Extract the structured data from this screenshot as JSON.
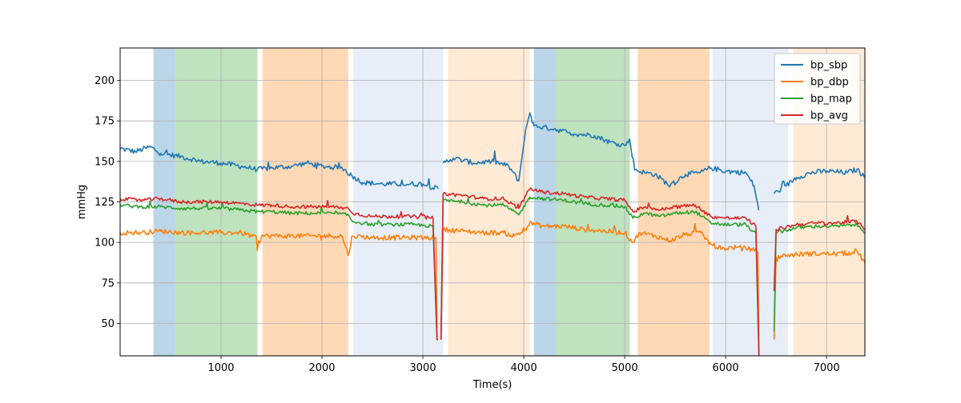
{
  "chart_data": {
    "type": "line",
    "title": "",
    "xlabel": "Time(s)",
    "ylabel": "mmHg",
    "xlim": [
      0,
      7380
    ],
    "ylim": [
      30,
      220
    ],
    "xticks": [
      1000,
      2000,
      3000,
      4000,
      5000,
      6000,
      7000
    ],
    "yticks": [
      50,
      75,
      100,
      125,
      150,
      175,
      200
    ],
    "grid": true,
    "legend_position": "top-right",
    "series": [
      {
        "name": "bp_sbp",
        "color": "#1f77b4",
        "key": "sbp"
      },
      {
        "name": "bp_dbp",
        "color": "#ff7f0e",
        "key": "dbp"
      },
      {
        "name": "bp_map",
        "color": "#2ca02c",
        "key": "map"
      },
      {
        "name": "bp_avg",
        "color": "#d62728",
        "key": "avg"
      }
    ],
    "shaded_regions": [
      {
        "x0": 330,
        "x1": 545,
        "color": "#1f77b4",
        "opacity": 0.3
      },
      {
        "x0": 545,
        "x1": 1360,
        "color": "#2ca02c",
        "opacity": 0.3
      },
      {
        "x0": 1410,
        "x1": 2260,
        "color": "#ff7f0e",
        "opacity": 0.3
      },
      {
        "x0": 2310,
        "x1": 3200,
        "color": "#aec7e8",
        "opacity": 0.3
      },
      {
        "x0": 3250,
        "x1": 4060,
        "color": "#ffbb78",
        "opacity": 0.3
      },
      {
        "x0": 4100,
        "x1": 4320,
        "color": "#1f77b4",
        "opacity": 0.3
      },
      {
        "x0": 4320,
        "x1": 5050,
        "color": "#2ca02c",
        "opacity": 0.3
      },
      {
        "x0": 5130,
        "x1": 5840,
        "color": "#ff7f0e",
        "opacity": 0.3
      },
      {
        "x0": 5870,
        "x1": 6620,
        "color": "#aec7e8",
        "opacity": 0.3
      },
      {
        "x0": 6670,
        "x1": 7380,
        "color": "#ffbb78",
        "opacity": 0.3
      }
    ],
    "keypoints": {
      "sbp": [
        [
          0,
          158
        ],
        [
          150,
          156
        ],
        [
          300,
          159
        ],
        [
          400,
          155
        ],
        [
          600,
          153
        ],
        [
          800,
          150
        ],
        [
          1000,
          149
        ],
        [
          1200,
          147
        ],
        [
          1360,
          145
        ],
        [
          1500,
          146
        ],
        [
          1700,
          147
        ],
        [
          1850,
          149
        ],
        [
          2000,
          147
        ],
        [
          2200,
          146
        ],
        [
          2300,
          141
        ],
        [
          2400,
          137
        ],
        [
          2600,
          136
        ],
        [
          2800,
          136
        ],
        [
          3000,
          136
        ],
        [
          3150,
          133
        ],
        [
          3180,
          null
        ],
        [
          3200,
          149
        ],
        [
          3300,
          152
        ],
        [
          3500,
          149
        ],
        [
          3700,
          150
        ],
        [
          3850,
          147
        ],
        [
          3950,
          138
        ],
        [
          4020,
          170
        ],
        [
          4060,
          180
        ],
        [
          4100,
          172
        ],
        [
          4300,
          170
        ],
        [
          4500,
          167
        ],
        [
          4700,
          166
        ],
        [
          4850,
          162
        ],
        [
          5000,
          160
        ],
        [
          5050,
          163
        ],
        [
          5100,
          145
        ],
        [
          5200,
          143
        ],
        [
          5300,
          142
        ],
        [
          5450,
          135
        ],
        [
          5600,
          142
        ],
        [
          5750,
          143
        ],
        [
          5850,
          146
        ],
        [
          6000,
          144
        ],
        [
          6200,
          143
        ],
        [
          6280,
          135
        ],
        [
          6330,
          120
        ],
        [
          6340,
          null
        ],
        [
          6480,
          130
        ],
        [
          6600,
          135
        ],
        [
          6700,
          140
        ],
        [
          6850,
          143
        ],
        [
          7000,
          144
        ],
        [
          7200,
          143
        ],
        [
          7300,
          145
        ],
        [
          7380,
          140
        ]
      ],
      "dbp": [
        [
          0,
          106
        ],
        [
          200,
          106
        ],
        [
          400,
          107
        ],
        [
          600,
          106
        ],
        [
          800,
          106
        ],
        [
          1000,
          106
        ],
        [
          1200,
          106
        ],
        [
          1350,
          103
        ],
        [
          1360,
          95
        ],
        [
          1400,
          104
        ],
        [
          1600,
          104
        ],
        [
          1800,
          104
        ],
        [
          2000,
          104
        ],
        [
          2200,
          104
        ],
        [
          2260,
          92
        ],
        [
          2300,
          104
        ],
        [
          2500,
          103
        ],
        [
          2700,
          103
        ],
        [
          2900,
          103
        ],
        [
          3050,
          103
        ],
        [
          3130,
          103
        ],
        [
          3140,
          40
        ],
        [
          3150,
          40
        ],
        [
          3160,
          null
        ],
        [
          3180,
          40
        ],
        [
          3200,
          108
        ],
        [
          3400,
          107
        ],
        [
          3600,
          106
        ],
        [
          3800,
          106
        ],
        [
          3900,
          104
        ],
        [
          4000,
          107
        ],
        [
          4060,
          112
        ],
        [
          4200,
          110
        ],
        [
          4400,
          110
        ],
        [
          4600,
          108
        ],
        [
          4800,
          107
        ],
        [
          5000,
          106
        ],
        [
          5080,
          100
        ],
        [
          5150,
          106
        ],
        [
          5300,
          104
        ],
        [
          5450,
          101
        ],
        [
          5600,
          105
        ],
        [
          5750,
          106
        ],
        [
          5850,
          99
        ],
        [
          5950,
          96
        ],
        [
          6100,
          97
        ],
        [
          6250,
          96
        ],
        [
          6320,
          94
        ],
        [
          6330,
          30
        ],
        [
          6340,
          null
        ],
        [
          6480,
          40
        ],
        [
          6500,
          91
        ],
        [
          6600,
          92
        ],
        [
          6800,
          93
        ],
        [
          7000,
          93
        ],
        [
          7200,
          93
        ],
        [
          7300,
          95
        ],
        [
          7380,
          87
        ]
      ],
      "map": [
        [
          0,
          123
        ],
        [
          200,
          122
        ],
        [
          400,
          122
        ],
        [
          600,
          121
        ],
        [
          800,
          121
        ],
        [
          1000,
          121
        ],
        [
          1200,
          120
        ],
        [
          1360,
          119
        ],
        [
          1500,
          119
        ],
        [
          1700,
          118
        ],
        [
          1900,
          118
        ],
        [
          2100,
          118
        ],
        [
          2260,
          117
        ],
        [
          2300,
          113
        ],
        [
          2500,
          111
        ],
        [
          2700,
          111
        ],
        [
          2900,
          111
        ],
        [
          3100,
          110
        ],
        [
          3140,
          40
        ],
        [
          3150,
          40
        ],
        [
          3160,
          null
        ],
        [
          3180,
          40
        ],
        [
          3200,
          126
        ],
        [
          3400,
          125
        ],
        [
          3600,
          123
        ],
        [
          3800,
          123
        ],
        [
          3950,
          117
        ],
        [
          4060,
          128
        ],
        [
          4200,
          127
        ],
        [
          4400,
          126
        ],
        [
          4600,
          124
        ],
        [
          4800,
          123
        ],
        [
          5000,
          122
        ],
        [
          5080,
          115
        ],
        [
          5200,
          118
        ],
        [
          5350,
          116
        ],
        [
          5500,
          118
        ],
        [
          5700,
          119
        ],
        [
          5850,
          112
        ],
        [
          6000,
          111
        ],
        [
          6200,
          111
        ],
        [
          6300,
          105
        ],
        [
          6330,
          30
        ],
        [
          6340,
          null
        ],
        [
          6480,
          45
        ],
        [
          6500,
          106
        ],
        [
          6700,
          109
        ],
        [
          6900,
          110
        ],
        [
          7100,
          110
        ],
        [
          7300,
          111
        ],
        [
          7380,
          106
        ]
      ],
      "avg": [
        [
          0,
          127
        ],
        [
          200,
          126
        ],
        [
          400,
          127
        ],
        [
          600,
          125
        ],
        [
          800,
          125
        ],
        [
          1000,
          125
        ],
        [
          1200,
          124
        ],
        [
          1360,
          123
        ],
        [
          1500,
          123
        ],
        [
          1700,
          122
        ],
        [
          1900,
          122
        ],
        [
          2100,
          122
        ],
        [
          2260,
          121
        ],
        [
          2300,
          118
        ],
        [
          2500,
          116
        ],
        [
          2700,
          116
        ],
        [
          2900,
          116
        ],
        [
          3100,
          115
        ],
        [
          3140,
          40
        ],
        [
          3150,
          40
        ],
        [
          3160,
          null
        ],
        [
          3180,
          40
        ],
        [
          3200,
          130
        ],
        [
          3400,
          129
        ],
        [
          3600,
          127
        ],
        [
          3800,
          127
        ],
        [
          3950,
          121
        ],
        [
          4060,
          133
        ],
        [
          4200,
          131
        ],
        [
          4400,
          130
        ],
        [
          4600,
          128
        ],
        [
          4800,
          127
        ],
        [
          5000,
          126
        ],
        [
          5080,
          119
        ],
        [
          5200,
          122
        ],
        [
          5350,
          120
        ],
        [
          5500,
          122
        ],
        [
          5700,
          123
        ],
        [
          5850,
          116
        ],
        [
          6000,
          115
        ],
        [
          6200,
          115
        ],
        [
          6300,
          110
        ],
        [
          6330,
          30
        ],
        [
          6340,
          null
        ],
        [
          6480,
          70
        ],
        [
          6500,
          108
        ],
        [
          6700,
          111
        ],
        [
          6900,
          112
        ],
        [
          7100,
          112
        ],
        [
          7300,
          113
        ],
        [
          7380,
          108
        ]
      ]
    }
  }
}
